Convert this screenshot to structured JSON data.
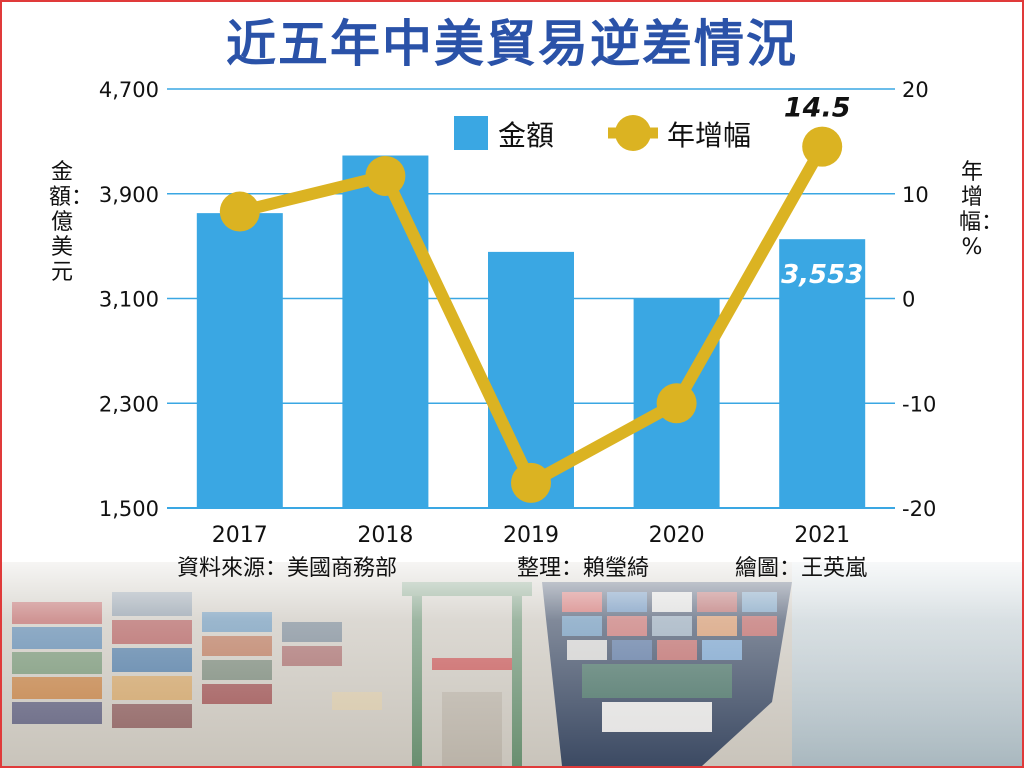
{
  "title": "近五年中美貿易逆差情況",
  "legend": {
    "amount": "金額",
    "growth": "年增幅"
  },
  "credits": {
    "source": "資料來源：美國商務部",
    "editor": "整理：賴瑩綺",
    "illustrator": "繪圖：王英嵐"
  },
  "colors": {
    "bar": "#3aa7e3",
    "line": "#dbb322",
    "title": "#2a52a8",
    "frame": "#e03a3a"
  },
  "chart_data": {
    "type": "bar",
    "categories": [
      "2017",
      "2018",
      "2019",
      "2020",
      "2021"
    ],
    "ylabel": "金額：億美元",
    "y2label": "年增幅：%",
    "ylim": [
      1500,
      4700
    ],
    "y2lim": [
      -20,
      20
    ],
    "yticks": [
      "4,700",
      "3,900",
      "3,100",
      "2,300",
      "1,500"
    ],
    "y2ticks": [
      "20",
      "10",
      "0",
      "-10",
      "-20"
    ],
    "series": [
      {
        "name": "金額",
        "type": "bar",
        "axis": "left",
        "values": [
          3752,
          4192,
          3456,
          3100,
          3553
        ]
      },
      {
        "name": "年增幅",
        "type": "line",
        "axis": "right",
        "values": [
          8.3,
          11.7,
          -17.6,
          -10.0,
          14.5
        ]
      }
    ],
    "annotations": [
      {
        "series": "年增幅",
        "category": "2021",
        "text": "14.5"
      },
      {
        "series": "金額",
        "category": "2021",
        "text": "3,553"
      }
    ]
  }
}
